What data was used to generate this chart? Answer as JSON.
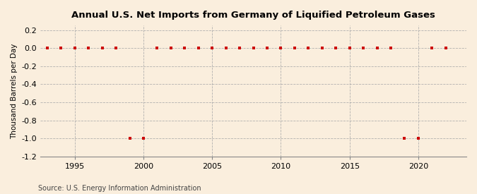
{
  "title": "Annual U.S. Net Imports from Germany of Liquified Petroleum Gases",
  "ylabel": "Thousand Barrels per Day",
  "source": "Source: U.S. Energy Information Administration",
  "background_color": "#faeedd",
  "marker_color": "#cc0000",
  "grid_color": "#aaaaaa",
  "xlim": [
    1992.5,
    2023.5
  ],
  "ylim": [
    -1.2,
    0.25
  ],
  "xticks": [
    1995,
    2000,
    2005,
    2010,
    2015,
    2020
  ],
  "yticks": [
    0.2,
    0.0,
    -0.2,
    -0.4,
    -0.6,
    -0.8,
    -1.0,
    -1.2
  ],
  "years": [
    1993,
    1994,
    1995,
    1996,
    1997,
    1998,
    1999,
    2000,
    2001,
    2002,
    2003,
    2004,
    2005,
    2006,
    2007,
    2008,
    2009,
    2010,
    2011,
    2012,
    2013,
    2014,
    2015,
    2016,
    2017,
    2018,
    2019,
    2020,
    2021,
    2022
  ],
  "values": [
    0,
    0,
    0,
    0,
    0,
    0,
    -1,
    -1,
    0,
    0,
    0,
    0,
    0,
    0,
    0,
    0,
    0,
    0,
    0,
    0,
    0,
    0,
    0,
    0,
    0,
    0,
    -1,
    -1,
    0,
    0
  ]
}
